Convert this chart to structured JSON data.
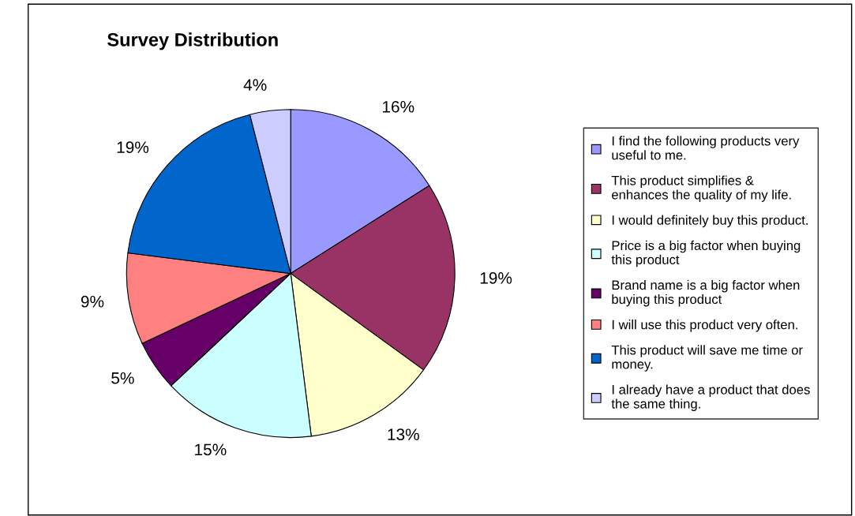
{
  "chart_data": {
    "type": "pie",
    "title": "Survey Distribution",
    "categories": [
      "I find the following products very\nuseful to me.",
      "This product simplifies &\nenhances the quality of my life.",
      "I would definitely buy this product.",
      "Price is a big factor when buying\nthis product",
      "Brand name is a big factor when\nbuying this product",
      "I will use this product very often.",
      "This product will save me time or\nmoney.",
      "I already have a product that does\nthe same thing."
    ],
    "values": [
      16,
      19,
      13,
      15,
      5,
      9,
      19,
      4
    ],
    "colors": [
      "#9999ff",
      "#993366",
      "#ffffcc",
      "#ccffff",
      "#660066",
      "#ff8080",
      "#0066cc",
      "#ccccff"
    ],
    "value_labels": [
      "16%",
      "19%",
      "13%",
      "15%",
      "5%",
      "9%",
      "19%",
      "4%"
    ],
    "legend": "right"
  }
}
